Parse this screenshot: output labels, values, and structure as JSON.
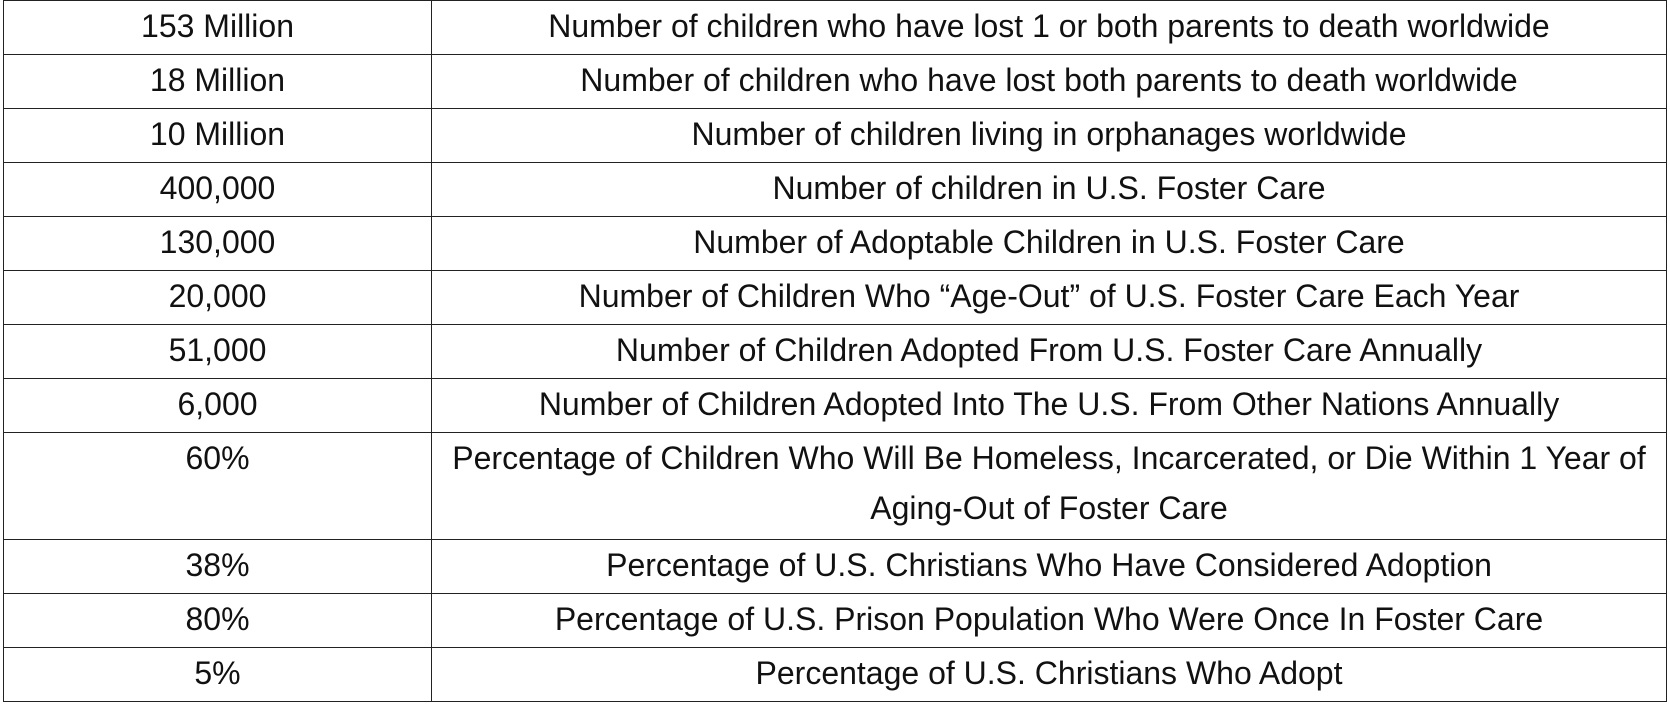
{
  "table": {
    "rows": [
      {
        "value": "153 Million",
        "description": "Number of children who have lost 1 or both parents to death worldwide"
      },
      {
        "value": "18 Million",
        "description": "Number of children who have lost both parents to death worldwide"
      },
      {
        "value": "10 Million",
        "description": "Number of children living in orphanages worldwide"
      },
      {
        "value": "400,000",
        "description": "Number of children in U.S. Foster Care"
      },
      {
        "value": "130,000",
        "description": "Number of Adoptable Children in U.S. Foster Care"
      },
      {
        "value": "20,000",
        "description": "Number of Children Who “Age-Out” of U.S. Foster Care Each Year"
      },
      {
        "value": "51,000",
        "description": "Number of Children Adopted From U.S. Foster Care Annually"
      },
      {
        "value": "6,000",
        "description": "Number of Children Adopted Into The U.S. From Other Nations Annually"
      },
      {
        "value": "60%",
        "description": "Percentage of Children Who Will Be Homeless, Incarcerated, or Die Within 1 Year of Aging-Out of Foster Care"
      },
      {
        "value": "38%",
        "description": "Percentage of U.S. Christians Who Have Considered Adoption"
      },
      {
        "value": "80%",
        "description": "Percentage of U.S. Prison Population Who Were Once In Foster Care"
      },
      {
        "value": "5%",
        "description": "Percentage of U.S. Christians Who Adopt"
      }
    ]
  }
}
